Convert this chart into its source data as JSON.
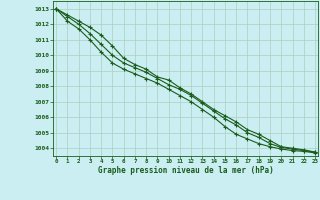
{
  "title": "Graphe pression niveau de la mer (hPa)",
  "background_color": "#cbeef3",
  "grid_color": "#aacfbf",
  "line_color": "#1a5c1a",
  "x_ticks": [
    0,
    1,
    2,
    3,
    4,
    5,
    6,
    7,
    8,
    9,
    10,
    11,
    12,
    13,
    14,
    15,
    16,
    17,
    18,
    19,
    20,
    21,
    22,
    23
  ],
  "y_ticks": [
    1004,
    1005,
    1006,
    1007,
    1008,
    1009,
    1010,
    1011,
    1012,
    1013
  ],
  "ylim": [
    1003.5,
    1013.5
  ],
  "xlim": [
    -0.3,
    23.3
  ],
  "series1": [
    1013.0,
    1012.6,
    1012.2,
    1011.8,
    1011.3,
    1010.6,
    1009.8,
    1009.4,
    1009.1,
    1008.6,
    1008.4,
    1007.9,
    1007.5,
    1007.0,
    1006.5,
    1006.1,
    1005.7,
    1005.2,
    1004.9,
    1004.5,
    1004.1,
    1004.0,
    1003.9,
    1003.75
  ],
  "series2": [
    1013.0,
    1012.5,
    1012.0,
    1011.4,
    1010.7,
    1010.0,
    1009.5,
    1009.2,
    1008.9,
    1008.5,
    1008.1,
    1007.8,
    1007.4,
    1006.9,
    1006.4,
    1005.9,
    1005.5,
    1005.0,
    1004.7,
    1004.3,
    1004.05,
    1003.95,
    1003.85,
    1003.75
  ],
  "series3": [
    1013.0,
    1012.2,
    1011.7,
    1011.0,
    1010.2,
    1009.5,
    1009.1,
    1008.8,
    1008.5,
    1008.2,
    1007.8,
    1007.4,
    1007.0,
    1006.5,
    1006.0,
    1005.4,
    1004.9,
    1004.6,
    1004.3,
    1004.1,
    1003.95,
    1003.85,
    1003.8,
    1003.7
  ]
}
